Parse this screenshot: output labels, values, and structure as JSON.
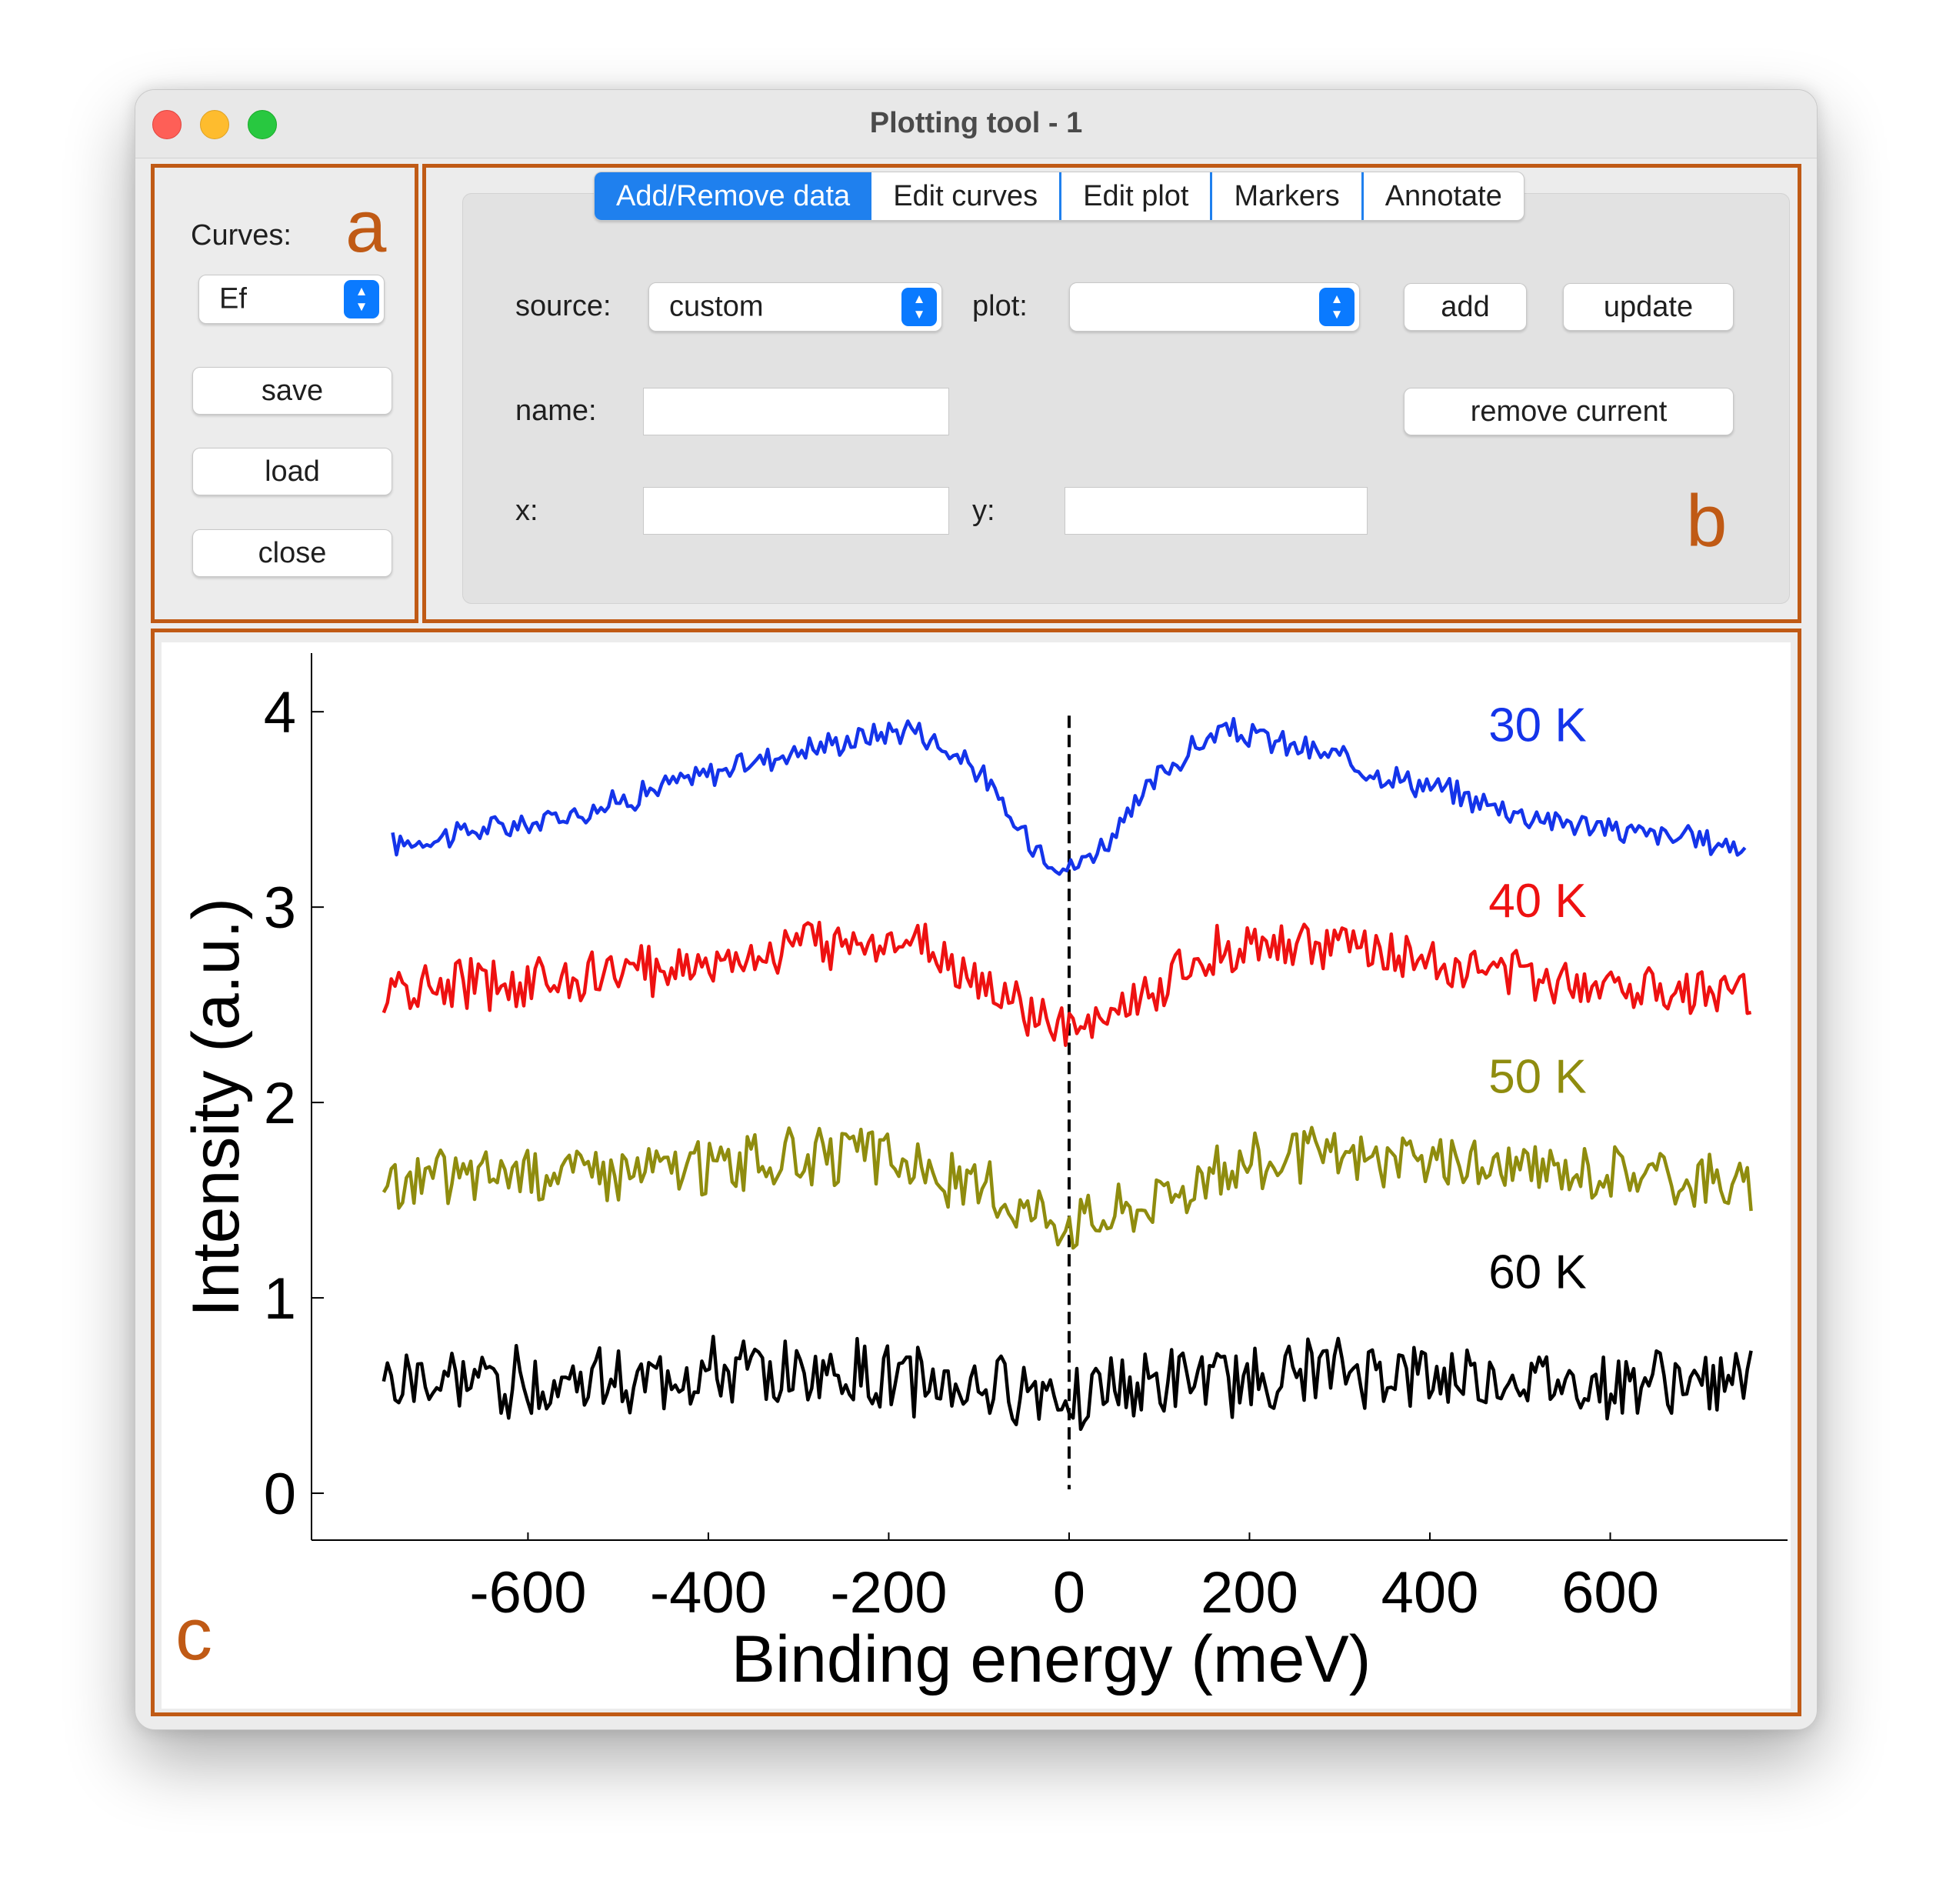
{
  "window": {
    "title": "Plotting tool - 1"
  },
  "panels": {
    "a": "a",
    "b": "b",
    "c": "c"
  },
  "left_panel": {
    "curves_label": "Curves:",
    "curves_selected": "Ef",
    "save_label": "save",
    "load_label": "load",
    "close_label": "close"
  },
  "tabs": [
    {
      "label": "Add/Remove data",
      "active": true
    },
    {
      "label": "Edit curves",
      "active": false
    },
    {
      "label": "Edit plot",
      "active": false
    },
    {
      "label": "Markers",
      "active": false
    },
    {
      "label": "Annotate",
      "active": false
    }
  ],
  "add_remove": {
    "source_label": "source:",
    "source_value": "custom",
    "plot_label": "plot:",
    "plot_value": "",
    "add_label": "add",
    "update_label": "update",
    "name_label": "name:",
    "name_value": "",
    "remove_label": "remove current",
    "x_label": "x:",
    "x_value": "",
    "y_label": "y:",
    "y_value": ""
  },
  "chart_data": {
    "type": "line",
    "title": "",
    "xlabel": "Binding energy (meV)",
    "ylabel": "Intensity (a.u.)",
    "xlim": [
      -840,
      800
    ],
    "ylim": [
      -0.24,
      4.3
    ],
    "xticks": [
      -600,
      -400,
      -200,
      0,
      200,
      400,
      600
    ],
    "yticks": [
      0,
      1,
      2,
      3,
      4
    ],
    "vline": {
      "x": 0,
      "style": "dashed",
      "color": "#000000"
    },
    "grid": false,
    "legend": "none",
    "series": [
      {
        "name": "30 K",
        "color": "#1434ea",
        "noise": 0.06,
        "x": [
          -750,
          -700,
          -650,
          -600,
          -550,
          -500,
          -450,
          -400,
          -350,
          -300,
          -250,
          -200,
          -170,
          -150,
          -100,
          -80,
          -60,
          -40,
          -20,
          0,
          20,
          40,
          60,
          80,
          100,
          150,
          170,
          200,
          250,
          300,
          350,
          400,
          450,
          500,
          550,
          600,
          650,
          700,
          750
        ],
        "y": [
          3.32,
          3.36,
          3.4,
          3.42,
          3.48,
          3.54,
          3.62,
          3.68,
          3.75,
          3.8,
          3.85,
          3.9,
          3.92,
          3.85,
          3.7,
          3.55,
          3.42,
          3.33,
          3.26,
          3.19,
          3.26,
          3.33,
          3.42,
          3.55,
          3.68,
          3.85,
          3.9,
          3.88,
          3.82,
          3.76,
          3.68,
          3.62,
          3.55,
          3.48,
          3.44,
          3.4,
          3.37,
          3.34,
          3.31
        ]
      },
      {
        "name": "40 K",
        "color": "#ee1111",
        "noise": 0.11,
        "x": [
          -760,
          -700,
          -600,
          -500,
          -400,
          -300,
          -200,
          -150,
          -100,
          -50,
          0,
          50,
          100,
          150,
          200,
          300,
          400,
          500,
          600,
          700,
          760
        ],
        "y": [
          2.55,
          2.6,
          2.62,
          2.66,
          2.72,
          2.8,
          2.84,
          2.78,
          2.62,
          2.46,
          2.36,
          2.44,
          2.6,
          2.76,
          2.82,
          2.8,
          2.72,
          2.65,
          2.62,
          2.58,
          2.54
        ]
      },
      {
        "name": "50 K",
        "color": "#8f8c0e",
        "noise": 0.13,
        "x": [
          -760,
          -700,
          -600,
          -500,
          -400,
          -300,
          -200,
          -150,
          -100,
          -50,
          0,
          50,
          100,
          150,
          200,
          300,
          400,
          500,
          600,
          700,
          760
        ],
        "y": [
          1.55,
          1.62,
          1.66,
          1.65,
          1.68,
          1.72,
          1.72,
          1.62,
          1.55,
          1.48,
          1.4,
          1.44,
          1.52,
          1.62,
          1.7,
          1.72,
          1.7,
          1.66,
          1.65,
          1.62,
          1.55
        ]
      },
      {
        "name": "60 K",
        "color": "#000000",
        "noise": 0.16,
        "x": [
          -760,
          -500,
          -300,
          -100,
          0,
          100,
          300,
          500,
          760
        ],
        "y": [
          0.56,
          0.58,
          0.62,
          0.55,
          0.52,
          0.55,
          0.62,
          0.58,
          0.56
        ]
      }
    ],
    "annotations": [
      {
        "text": "30 K",
        "x": 465,
        "y": 3.85,
        "color": "#1434ea"
      },
      {
        "text": "40 K",
        "x": 465,
        "y": 2.95,
        "color": "#ee1111"
      },
      {
        "text": "50 K",
        "x": 465,
        "y": 2.05,
        "color": "#8f8c0e"
      },
      {
        "text": "60 K",
        "x": 465,
        "y": 1.05,
        "color": "#000000"
      }
    ]
  }
}
